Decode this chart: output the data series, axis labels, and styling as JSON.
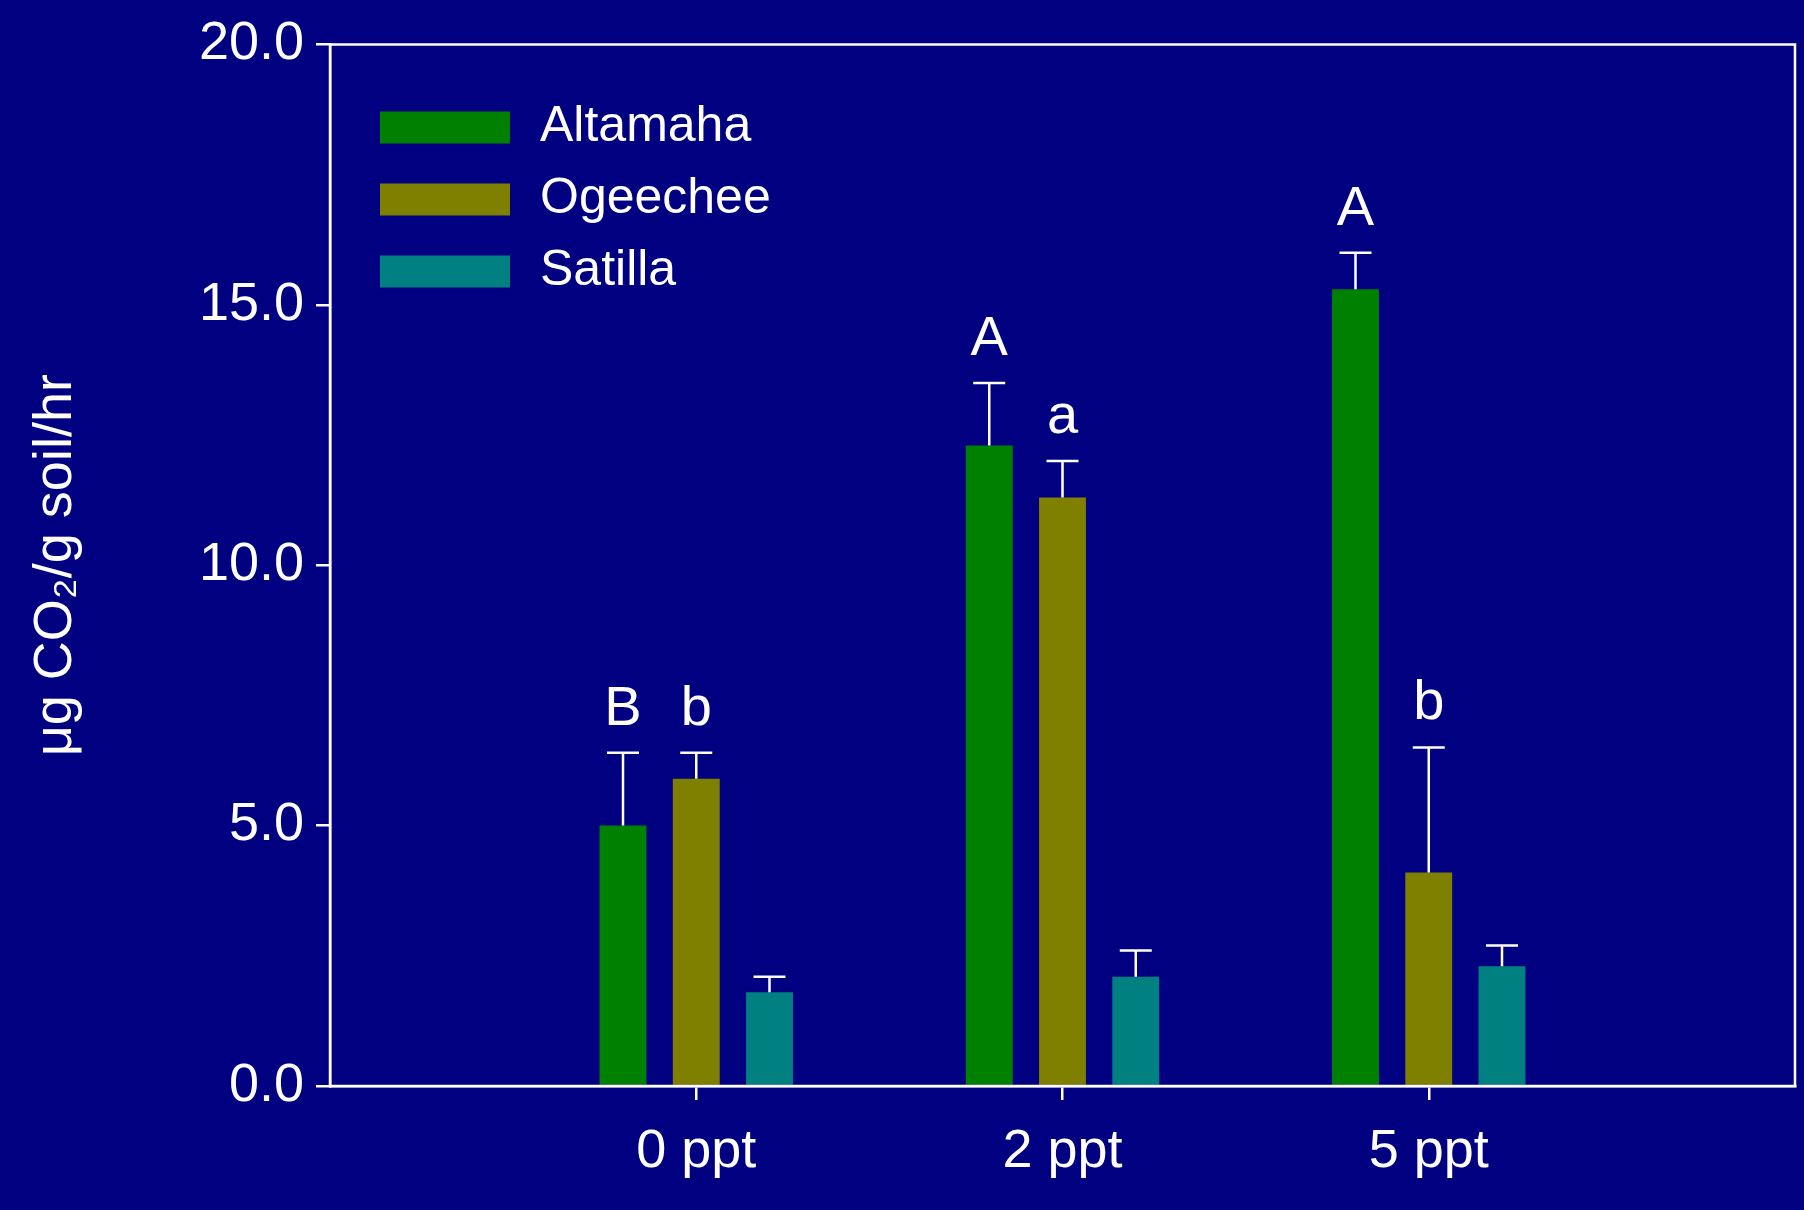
{
  "chart_data": {
    "type": "bar",
    "ylabel": "μg CO₂/g soil/hr",
    "categories": [
      "0 ppt",
      "2 ppt",
      "5 ppt"
    ],
    "series": [
      {
        "name": "Altamaha",
        "color": "#008000",
        "values": [
          5.0,
          12.3,
          15.3
        ],
        "errors": [
          [
            5.0,
            6.4
          ],
          [
            12.3,
            13.5
          ],
          [
            15.3,
            16.0
          ]
        ]
      },
      {
        "name": "Ogeechee",
        "color": "#808000",
        "values": [
          5.9,
          11.3,
          4.1
        ],
        "errors": [
          [
            5.9,
            6.4
          ],
          [
            11.3,
            12.0
          ],
          [
            4.1,
            6.5
          ]
        ]
      },
      {
        "name": "Satilla",
        "color": "#008080",
        "values": [
          1.8,
          2.1,
          2.3
        ],
        "errors": [
          [
            1.8,
            2.1
          ],
          [
            2.1,
            2.6
          ],
          [
            2.3,
            2.7
          ]
        ]
      }
    ],
    "ylim": [
      0,
      20
    ],
    "yticks": [
      {
        "value": 0,
        "label": "0.0"
      },
      {
        "value": 5,
        "label": "5.0"
      },
      {
        "value": 10,
        "label": "10.0"
      },
      {
        "value": 15,
        "label": "15.0"
      },
      {
        "value": 20,
        "label": "20.0"
      }
    ],
    "grid": false,
    "legend": "top left",
    "annotations": [
      "B",
      {
        "text": "b",
        "x": "0 ppt",
        "y": 5.9
      },
      "A",
      {
        "text": "a",
        "x": "2 ppt",
        "y": 11.3
      },
      "A",
      {
        "text": "b",
        "x": "5 ppt",
        "y": 4.1
      }
    ]
  }
}
